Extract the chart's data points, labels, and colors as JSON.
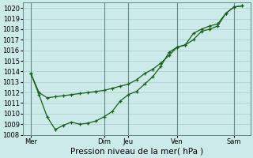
{
  "title": "Pression niveau de la mer( hPa )",
  "bg_color": "#cceae7",
  "grid_color": "#aacccc",
  "grid_minor_color": "#bbdddd",
  "line_color": "#1a5c1a",
  "vline_color": "#668888",
  "ylim": [
    1008,
    1020.5
  ],
  "yticks": [
    1008,
    1009,
    1010,
    1011,
    1012,
    1013,
    1014,
    1015,
    1016,
    1017,
    1018,
    1019,
    1020
  ],
  "xlim": [
    0,
    28
  ],
  "xtick_positions": [
    1,
    10,
    13,
    19,
    26
  ],
  "xtick_labels": [
    "Mer",
    "Dim",
    "Jeu",
    "Ven",
    "Sam"
  ],
  "vline_positions": [
    1,
    10,
    13,
    19,
    26
  ],
  "line1_x": [
    1,
    2,
    3,
    4,
    5,
    6,
    7,
    8,
    9,
    10,
    11,
    12,
    13,
    14,
    15,
    16,
    17,
    18,
    19,
    20,
    21,
    22,
    23,
    24,
    25,
    26,
    27
  ],
  "line1_y": [
    1013.8,
    1012.0,
    1011.5,
    1011.6,
    1011.7,
    1011.8,
    1011.9,
    1012.0,
    1012.1,
    1012.2,
    1012.4,
    1012.6,
    1012.8,
    1013.2,
    1013.8,
    1014.2,
    1014.8,
    1015.5,
    1016.3,
    1016.5,
    1017.6,
    1018.0,
    1018.3,
    1018.5,
    1019.5,
    1020.1,
    1020.2
  ],
  "line2_x": [
    1,
    2,
    3,
    4,
    5,
    6,
    7,
    8,
    9,
    10,
    11,
    12,
    13,
    14,
    15,
    16,
    17,
    18,
    19,
    20,
    21,
    22,
    23,
    24,
    25,
    26,
    27
  ],
  "line2_y": [
    1013.8,
    1011.8,
    1009.7,
    1008.5,
    1008.9,
    1009.2,
    1009.0,
    1009.1,
    1009.3,
    1009.7,
    1010.2,
    1011.2,
    1011.8,
    1012.1,
    1012.8,
    1013.5,
    1014.5,
    1015.8,
    1016.3,
    1016.5,
    1017.0,
    1017.8,
    1018.0,
    1018.3,
    1019.5,
    1020.1,
    1020.2
  ],
  "title_fontsize": 7.5,
  "tick_fontsize": 6.0
}
